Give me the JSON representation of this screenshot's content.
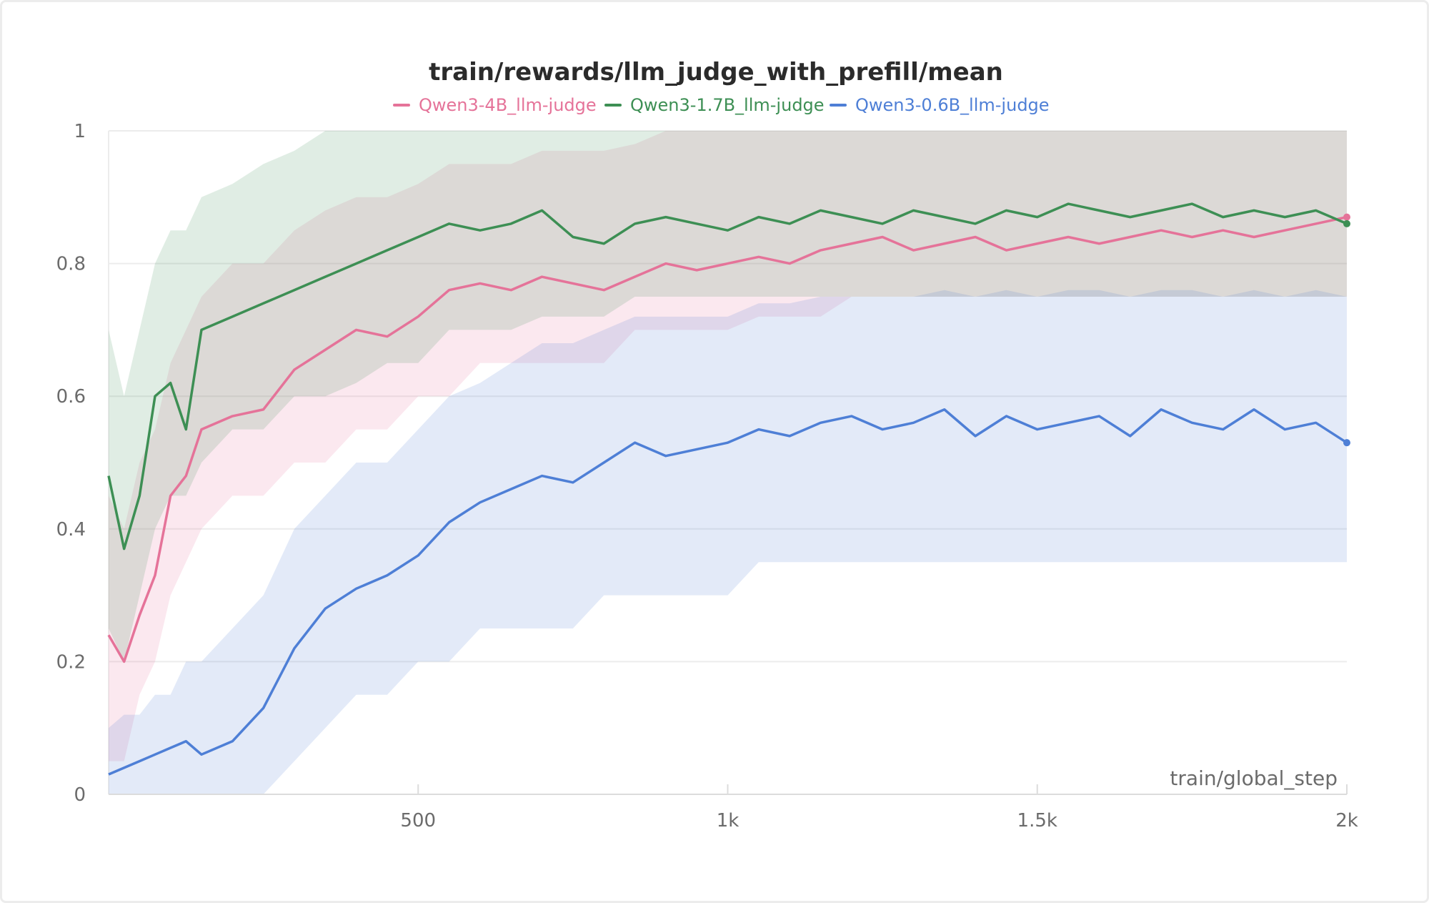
{
  "chart_data": {
    "type": "line",
    "title": "train/rewards/llm_judge_with_prefill/mean",
    "xlabel": "train/global_step",
    "ylabel": "",
    "xlim": [
      0,
      2000
    ],
    "ylim": [
      0,
      1
    ],
    "x_ticks": [
      {
        "value": 500,
        "label": "500"
      },
      {
        "value": 1000,
        "label": "1k"
      },
      {
        "value": 1500,
        "label": "1.5k"
      },
      {
        "value": 2000,
        "label": "2k"
      }
    ],
    "y_ticks": [
      {
        "value": 0,
        "label": "0"
      },
      {
        "value": 0.2,
        "label": "0.2"
      },
      {
        "value": 0.4,
        "label": "0.4"
      },
      {
        "value": 0.6,
        "label": "0.6"
      },
      {
        "value": 0.8,
        "label": "0.8"
      },
      {
        "value": 1,
        "label": "1"
      }
    ],
    "grid": true,
    "legend_position": "top-center",
    "x": [
      0,
      25,
      50,
      75,
      100,
      125,
      150,
      200,
      250,
      300,
      350,
      400,
      450,
      500,
      550,
      600,
      650,
      700,
      750,
      800,
      850,
      900,
      950,
      1000,
      1050,
      1100,
      1150,
      1200,
      1250,
      1300,
      1350,
      1400,
      1450,
      1500,
      1550,
      1600,
      1650,
      1700,
      1750,
      1800,
      1850,
      1900,
      1950,
      2000
    ],
    "series": [
      {
        "name": "Qwen3-4B_llm-judge",
        "color": "#e57399",
        "values": [
          0.24,
          0.2,
          0.27,
          0.33,
          0.45,
          0.48,
          0.55,
          0.57,
          0.58,
          0.64,
          0.67,
          0.7,
          0.69,
          0.72,
          0.76,
          0.77,
          0.76,
          0.78,
          0.77,
          0.76,
          0.78,
          0.8,
          0.79,
          0.8,
          0.81,
          0.8,
          0.82,
          0.83,
          0.84,
          0.82,
          0.83,
          0.84,
          0.82,
          0.83,
          0.84,
          0.83,
          0.84,
          0.85,
          0.84,
          0.85,
          0.84,
          0.85,
          0.86,
          0.87
        ],
        "band_low": [
          0.05,
          0.05,
          0.15,
          0.2,
          0.3,
          0.35,
          0.4,
          0.45,
          0.45,
          0.5,
          0.5,
          0.55,
          0.55,
          0.6,
          0.6,
          0.65,
          0.65,
          0.65,
          0.65,
          0.65,
          0.7,
          0.7,
          0.7,
          0.7,
          0.72,
          0.72,
          0.72,
          0.75,
          0.75,
          0.75,
          0.75,
          0.75,
          0.75,
          0.75,
          0.75,
          0.75,
          0.75,
          0.75,
          0.75,
          0.75,
          0.75,
          0.75,
          0.75,
          0.75
        ],
        "band_high": [
          0.45,
          0.4,
          0.5,
          0.55,
          0.65,
          0.7,
          0.75,
          0.8,
          0.8,
          0.85,
          0.88,
          0.9,
          0.9,
          0.92,
          0.95,
          0.95,
          0.95,
          0.97,
          0.97,
          0.97,
          0.98,
          1.0,
          1.0,
          1.0,
          1.0,
          1.0,
          1.0,
          1.0,
          1.0,
          1.0,
          1.0,
          1.0,
          1.0,
          1.0,
          1.0,
          1.0,
          1.0,
          1.0,
          1.0,
          1.0,
          1.0,
          1.0,
          1.0,
          1.0
        ]
      },
      {
        "name": "Qwen3-1.7B_llm-judge",
        "color": "#3d8f54",
        "values": [
          0.48,
          0.37,
          0.45,
          0.6,
          0.62,
          0.55,
          0.7,
          0.72,
          0.74,
          0.76,
          0.78,
          0.8,
          0.82,
          0.84,
          0.86,
          0.85,
          0.86,
          0.88,
          0.84,
          0.83,
          0.86,
          0.87,
          0.86,
          0.85,
          0.87,
          0.86,
          0.88,
          0.87,
          0.86,
          0.88,
          0.87,
          0.86,
          0.88,
          0.87,
          0.89,
          0.88,
          0.87,
          0.88,
          0.89,
          0.87,
          0.88,
          0.87,
          0.88,
          0.86
        ],
        "band_low": [
          0.25,
          0.2,
          0.3,
          0.4,
          0.45,
          0.45,
          0.5,
          0.55,
          0.55,
          0.6,
          0.6,
          0.62,
          0.65,
          0.65,
          0.7,
          0.7,
          0.7,
          0.72,
          0.72,
          0.72,
          0.75,
          0.75,
          0.75,
          0.75,
          0.75,
          0.75,
          0.75,
          0.75,
          0.75,
          0.75,
          0.75,
          0.75,
          0.75,
          0.75,
          0.75,
          0.75,
          0.75,
          0.75,
          0.75,
          0.75,
          0.75,
          0.75,
          0.75,
          0.75
        ],
        "band_high": [
          0.7,
          0.6,
          0.7,
          0.8,
          0.85,
          0.85,
          0.9,
          0.92,
          0.95,
          0.97,
          1.0,
          1.0,
          1.0,
          1.0,
          1.0,
          1.0,
          1.0,
          1.0,
          1.0,
          1.0,
          1.0,
          1.0,
          1.0,
          1.0,
          1.0,
          1.0,
          1.0,
          1.0,
          1.0,
          1.0,
          1.0,
          1.0,
          1.0,
          1.0,
          1.0,
          1.0,
          1.0,
          1.0,
          1.0,
          1.0,
          1.0,
          1.0,
          1.0,
          1.0
        ]
      },
      {
        "name": "Qwen3-0.6B_llm-judge",
        "color": "#4e7fd6",
        "values": [
          0.03,
          0.04,
          0.05,
          0.06,
          0.07,
          0.08,
          0.06,
          0.08,
          0.13,
          0.22,
          0.28,
          0.31,
          0.33,
          0.36,
          0.41,
          0.44,
          0.46,
          0.48,
          0.47,
          0.5,
          0.53,
          0.51,
          0.52,
          0.53,
          0.55,
          0.54,
          0.56,
          0.57,
          0.55,
          0.56,
          0.58,
          0.54,
          0.57,
          0.55,
          0.56,
          0.57,
          0.54,
          0.58,
          0.56,
          0.55,
          0.58,
          0.55,
          0.56,
          0.53
        ],
        "band_low": [
          0.0,
          0.0,
          0.0,
          0.0,
          0.0,
          0.0,
          0.0,
          0.0,
          0.0,
          0.05,
          0.1,
          0.15,
          0.15,
          0.2,
          0.2,
          0.25,
          0.25,
          0.25,
          0.25,
          0.3,
          0.3,
          0.3,
          0.3,
          0.3,
          0.35,
          0.35,
          0.35,
          0.35,
          0.35,
          0.35,
          0.35,
          0.35,
          0.35,
          0.35,
          0.35,
          0.35,
          0.35,
          0.35,
          0.35,
          0.35,
          0.35,
          0.35,
          0.35,
          0.35
        ],
        "band_high": [
          0.1,
          0.12,
          0.12,
          0.15,
          0.15,
          0.2,
          0.2,
          0.25,
          0.3,
          0.4,
          0.45,
          0.5,
          0.5,
          0.55,
          0.6,
          0.62,
          0.65,
          0.68,
          0.68,
          0.7,
          0.72,
          0.72,
          0.72,
          0.72,
          0.74,
          0.74,
          0.75,
          0.75,
          0.75,
          0.75,
          0.76,
          0.75,
          0.76,
          0.75,
          0.76,
          0.76,
          0.75,
          0.76,
          0.76,
          0.75,
          0.76,
          0.75,
          0.76,
          0.75
        ]
      }
    ]
  }
}
